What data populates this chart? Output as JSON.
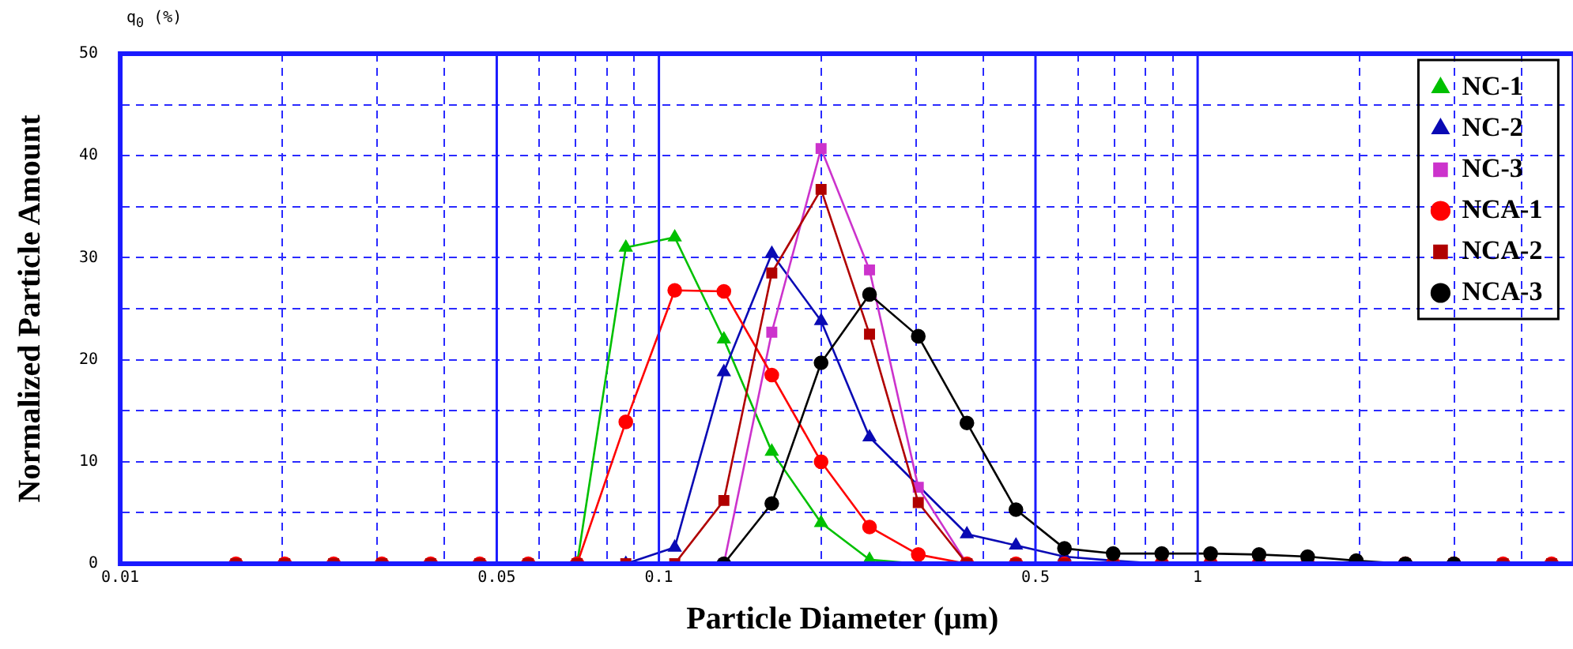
{
  "chart_data": {
    "type": "line",
    "xlabel": "Particle Diameter (μm)",
    "ylabel": "Normalized Particle Amount",
    "annotations": [
      "q$_{0}$ (%)"
    ],
    "x": [
      0.0164,
      0.0202,
      0.0249,
      0.0306,
      0.0377,
      0.0465,
      0.0572,
      0.0705,
      0.0868,
      0.107,
      0.132,
      0.162,
      0.2,
      0.246,
      0.303,
      0.373,
      0.46,
      0.566,
      0.697,
      0.858,
      1.057,
      1.3,
      1.6,
      1.97,
      2.43,
      2.99,
      3.69,
      4.54
    ],
    "xlim": [
      0.01,
      4.8
    ],
    "xticks": [
      0.01,
      {
        "value": 0.02,
        "label": null
      },
      {
        "value": 0.03,
        "label": null
      },
      {
        "value": 0.04,
        "label": null
      },
      0.05,
      {
        "value": 0.06,
        "label": null
      },
      {
        "value": 0.07,
        "label": null
      },
      {
        "value": 0.08,
        "label": null
      },
      {
        "value": 0.09,
        "label": null
      },
      0.1,
      {
        "value": 0.2,
        "label": null
      },
      {
        "value": 0.3,
        "label": null
      },
      {
        "value": 0.4,
        "label": null
      },
      0.5,
      {
        "value": 0.6,
        "label": null
      },
      {
        "value": 0.7,
        "label": null
      },
      {
        "value": 0.8,
        "label": null
      },
      {
        "value": 0.9,
        "label": null
      },
      1,
      {
        "value": 2,
        "label": null
      },
      {
        "value": 3,
        "label": null
      },
      {
        "value": 4,
        "label": null
      }
    ],
    "ylim": [
      0,
      50
    ],
    "yticks": [
      0,
      {
        "value": 5,
        "label": null
      },
      10,
      {
        "value": 15,
        "label": null
      },
      20,
      {
        "value": 25,
        "label": null
      },
      30,
      {
        "value": 35,
        "label": null
      },
      40,
      {
        "value": 45,
        "label": null
      },
      50
    ],
    "log": "x",
    "grid": true,
    "legend": "top right",
    "line_style": "solid",
    "series": [
      {
        "name": "NC-1",
        "color": "#00c000",
        "marker": "triangle",
        "values": [
          null,
          null,
          null,
          null,
          null,
          null,
          null,
          0,
          31,
          32,
          22,
          11,
          4,
          0.4,
          0,
          null,
          null,
          null,
          null,
          null,
          null,
          null,
          null,
          null,
          null,
          null,
          null,
          null
        ]
      },
      {
        "name": "NC-2",
        "color": "#0a0ab4",
        "marker": "triangle",
        "values": [
          null,
          null,
          null,
          null,
          null,
          null,
          null,
          null,
          0,
          1.6,
          18.8,
          30.4,
          23.8,
          12.4,
          null,
          2.9,
          1.8,
          0.7,
          0.3,
          0,
          null,
          null,
          null,
          null,
          null,
          null,
          null,
          null
        ]
      },
      {
        "name": "NC-3",
        "color": "#cc33cc",
        "marker": "square",
        "values": [
          null,
          null,
          null,
          null,
          null,
          null,
          null,
          null,
          null,
          null,
          0,
          22.7,
          40.7,
          28.8,
          7.5,
          0,
          null,
          null,
          null,
          null,
          null,
          null,
          null,
          null,
          null,
          null,
          null,
          null
        ]
      },
      {
        "name": "NCA-1",
        "color": "#ff0000",
        "marker": "circle",
        "values": [
          0,
          0,
          0,
          0,
          0,
          0,
          0,
          0,
          13.9,
          26.8,
          26.7,
          18.5,
          10,
          3.6,
          0.9,
          0,
          0,
          0,
          0,
          0,
          0,
          0,
          0,
          0,
          0,
          0,
          0,
          0
        ]
      },
      {
        "name": "NCA-2",
        "color": "#b00000",
        "marker": "square",
        "values": [
          0,
          0,
          0,
          0,
          0,
          0,
          0,
          0,
          0,
          0,
          6.2,
          28.5,
          36.7,
          22.5,
          6,
          0,
          0,
          0,
          0,
          0,
          0,
          0,
          0,
          0,
          0,
          0,
          0,
          0
        ]
      },
      {
        "name": "NCA-3",
        "color": "#000000",
        "marker": "circle",
        "values": [
          null,
          null,
          null,
          null,
          null,
          null,
          null,
          null,
          null,
          null,
          0,
          5.9,
          19.7,
          26.4,
          22.3,
          13.8,
          5.3,
          1.5,
          1,
          1,
          1,
          0.9,
          0.7,
          0.3,
          0,
          0,
          null,
          null
        ]
      }
    ]
  }
}
